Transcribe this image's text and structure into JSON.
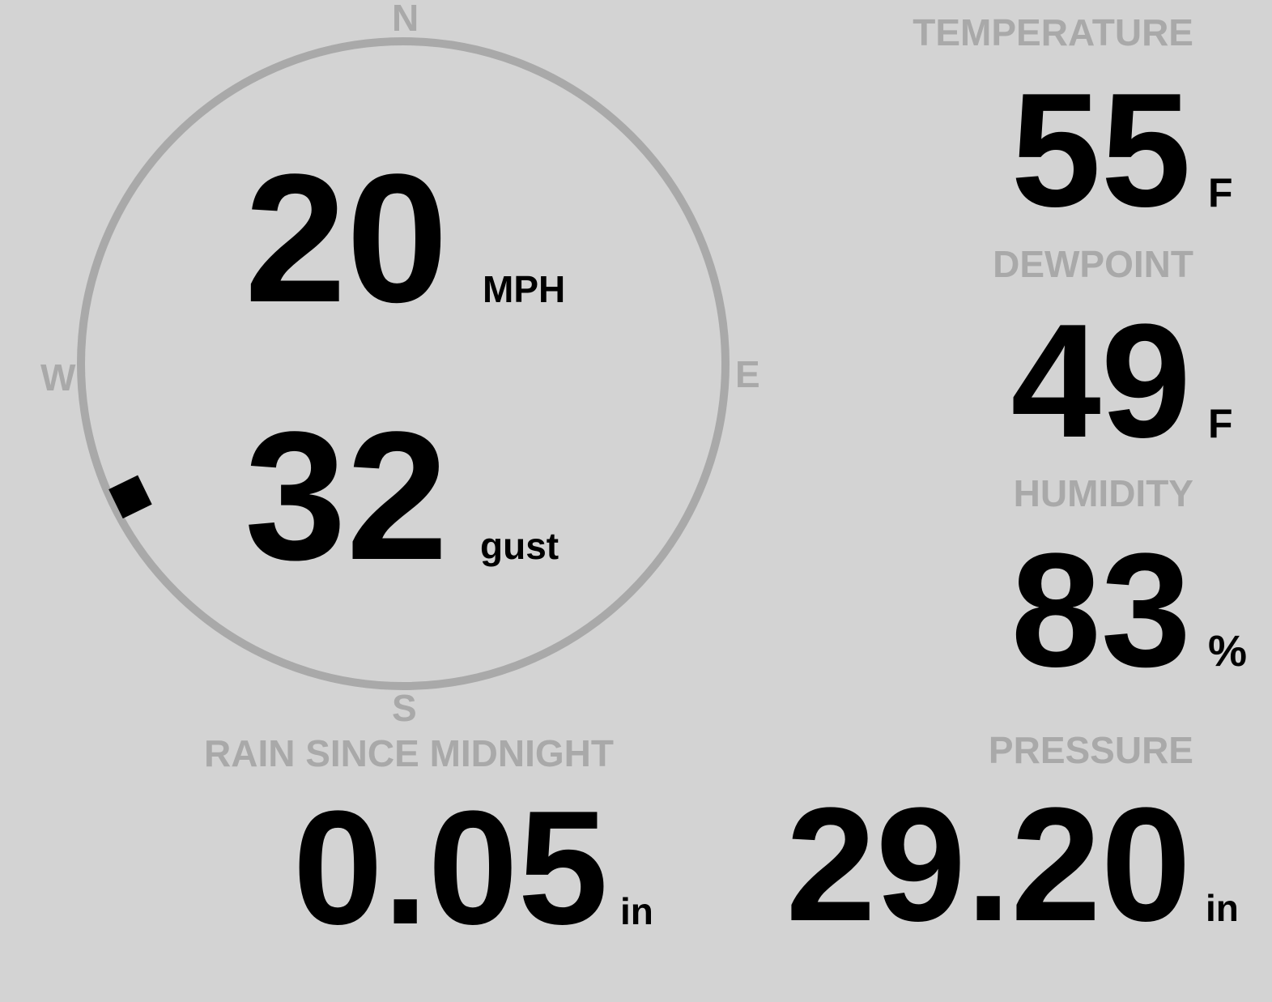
{
  "colors": {
    "background": "#d3d3d3",
    "dim": "#a9a9a9",
    "value": "#000000"
  },
  "compass": {
    "n": "N",
    "e": "E",
    "s": "S",
    "w": "W",
    "wind_direction_deg": 244
  },
  "wind": {
    "speed": "20",
    "speed_unit": "MPH",
    "gust": "32",
    "gust_unit": "gust"
  },
  "temperature": {
    "label": "TEMPERATURE",
    "value": "55",
    "unit": "F"
  },
  "dewpoint": {
    "label": "DEWPOINT",
    "value": "49",
    "unit": "F"
  },
  "humidity": {
    "label": "HUMIDITY",
    "value": "83",
    "unit": "%"
  },
  "rain": {
    "label": "RAIN SINCE MIDNIGHT",
    "value": "0.05",
    "unit": "in"
  },
  "pressure": {
    "label": "PRESSURE",
    "value": "29.20",
    "unit": "in"
  }
}
